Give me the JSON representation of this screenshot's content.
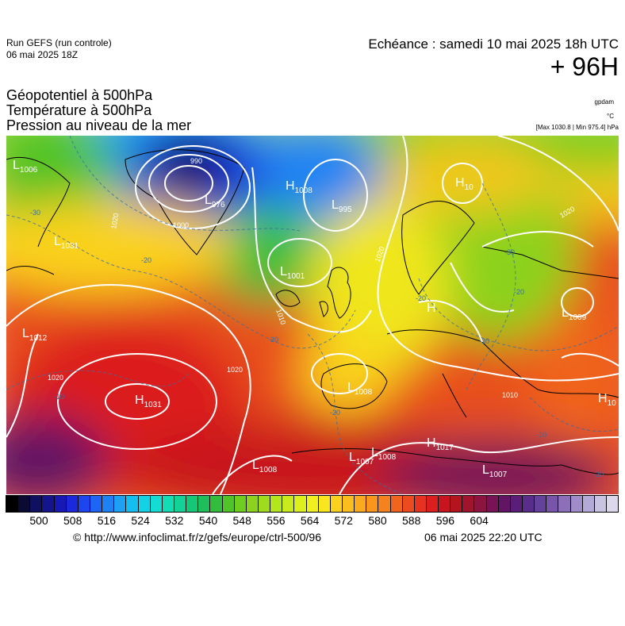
{
  "header": {
    "run_title": "Run GEFS (run controle)",
    "run_date": "06 mai 2025 18Z",
    "valid_time": "Echéance : samedi 10 mai 2025 18h UTC",
    "lead_time": "+ 96H",
    "unit_geopotential": "gpdam",
    "unit_temperature": "°C",
    "pressure_range": "[Max 1030.8 | Min 975.4] hPa"
  },
  "titles": {
    "line1": "Géopotentiel à 500hPa",
    "line2": "Température à 500hPa",
    "line3": "Pression au niveau de la mer"
  },
  "pressure_labels": [
    {
      "kind": "L",
      "value": "1006"
    },
    {
      "kind": "L",
      "value": "976"
    },
    {
      "kind": "H",
      "value": "1008"
    },
    {
      "kind": "L",
      "value": "995"
    },
    {
      "kind": "H",
      "value": "10"
    },
    {
      "kind": "L",
      "value": "1031"
    },
    {
      "kind": "L",
      "value": "1001"
    },
    {
      "kind": "L",
      "value": "1012"
    },
    {
      "kind": "H",
      "value": ""
    },
    {
      "kind": "L",
      "value": "1009"
    },
    {
      "kind": "L",
      "value": "1008"
    },
    {
      "kind": "H",
      "value": "1031"
    },
    {
      "kind": "H",
      "value": "10"
    },
    {
      "kind": "H",
      "value": "1017"
    },
    {
      "kind": "L",
      "value": "1007"
    },
    {
      "kind": "L",
      "value": "1008"
    },
    {
      "kind": "L",
      "value": "1008"
    },
    {
      "kind": "L",
      "value": "1007"
    }
  ],
  "isobar_labels": [
    "990",
    "1000",
    "1020",
    "1010",
    "1020",
    "1020",
    "1020",
    "1010",
    "1020"
  ],
  "isotherm_labels": [
    "-30",
    "-20",
    "-20",
    "-20",
    "-20",
    "-30",
    "-20",
    "-30",
    "-10",
    "-10",
    "-20"
  ],
  "colorbar": {
    "colors": [
      "#000000",
      "#0a0a33",
      "#101060",
      "#14148c",
      "#1818b4",
      "#1c28dc",
      "#1e46f0",
      "#1e64f5",
      "#1e82f5",
      "#1ea0f5",
      "#14bef0",
      "#14d2e6",
      "#14dcd2",
      "#14dcb4",
      "#14d296",
      "#14c878",
      "#1ebe5a",
      "#32be3c",
      "#50c328",
      "#6ecd1e",
      "#8cd21e",
      "#a0dc1e",
      "#b4e61e",
      "#c8eb1e",
      "#dcf01e",
      "#f0f01e",
      "#fae61e",
      "#fad21e",
      "#fabe1e",
      "#faaa1e",
      "#fa961e",
      "#f5821e",
      "#f0641e",
      "#eb4b1e",
      "#e6321e",
      "#dc1e1e",
      "#c8141e",
      "#b4141e",
      "#a0142d",
      "#8c1441",
      "#781455",
      "#641464",
      "#5a1e78",
      "#5a2d8c",
      "#64419b",
      "#7855aa",
      "#8c6eb9",
      "#a08cc8",
      "#b4aad7",
      "#c8c3e1",
      "#dcd7eb"
    ],
    "ticks": [
      "500",
      "508",
      "516",
      "524",
      "532",
      "540",
      "548",
      "556",
      "564",
      "572",
      "580",
      "588",
      "596",
      "604"
    ]
  },
  "footer": {
    "url": "© http://www.infoclimat.fr/z/gefs/europe/ctrl-500/96",
    "generated": "06 mai 2025 22:20 UTC"
  }
}
